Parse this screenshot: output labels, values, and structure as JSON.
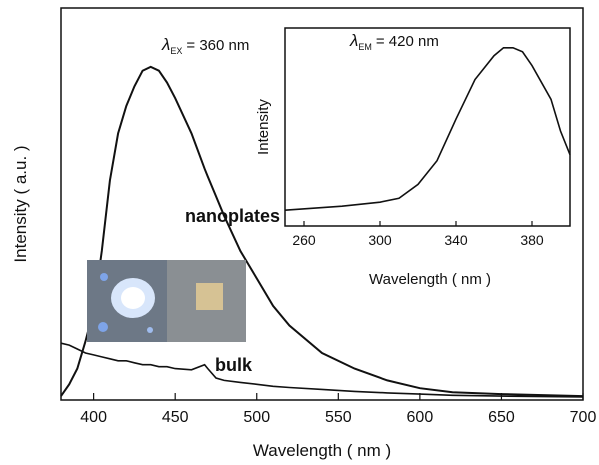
{
  "chart_data": [
    {
      "type": "line",
      "x_label": "Wavelength ( nm )",
      "y_label": "Intensity ( a.u. )",
      "annotation": {
        "symbol": "λ",
        "sub": "EX",
        "text": "= 360 nm"
      },
      "x": [
        380,
        385,
        390,
        395,
        400,
        405,
        410,
        415,
        420,
        425,
        430,
        435,
        440,
        445,
        450,
        460,
        468,
        470,
        475,
        480,
        490,
        500,
        510,
        520,
        540,
        560,
        580,
        600,
        620,
        650,
        700
      ],
      "series": [
        {
          "name": "nanoplates",
          "color": "#111111",
          "values": [
            0.01,
            0.04,
            0.08,
            0.15,
            0.23,
            0.38,
            0.56,
            0.68,
            0.75,
            0.8,
            0.84,
            0.85,
            0.84,
            0.81,
            0.77,
            0.68,
            0.59,
            0.57,
            0.52,
            0.47,
            0.38,
            0.31,
            0.24,
            0.19,
            0.12,
            0.08,
            0.05,
            0.03,
            0.02,
            0.015,
            0.01
          ]
        },
        {
          "name": "bulk",
          "color": "#111111",
          "values": [
            0.145,
            0.14,
            0.13,
            0.12,
            0.115,
            0.11,
            0.105,
            0.1,
            0.1,
            0.095,
            0.09,
            0.09,
            0.085,
            0.085,
            0.08,
            0.077,
            0.09,
            0.08,
            0.056,
            0.05,
            0.045,
            0.04,
            0.035,
            0.032,
            0.027,
            0.022,
            0.018,
            0.015,
            0.012,
            0.01,
            0.008
          ]
        }
      ],
      "xlim": [
        380,
        700
      ],
      "xticks": [
        400,
        450,
        500,
        550,
        600,
        650,
        700
      ],
      "ylim": [
        0,
        1
      ]
    },
    {
      "type": "line",
      "x_label": "Wavelength ( nm )",
      "y_label": "Intensity",
      "annotation": {
        "symbol": "λ",
        "sub": "EM",
        "text": "= 420 nm"
      },
      "x": [
        250,
        280,
        300,
        310,
        320,
        330,
        340,
        350,
        360,
        365,
        370,
        375,
        380,
        390,
        395,
        400
      ],
      "series": [
        {
          "color": "#111111",
          "values": [
            0.08,
            0.1,
            0.12,
            0.14,
            0.21,
            0.33,
            0.54,
            0.74,
            0.86,
            0.9,
            0.9,
            0.88,
            0.81,
            0.64,
            0.48,
            0.36
          ]
        }
      ],
      "xlim": [
        250,
        400
      ],
      "xticks": [
        260,
        300,
        340,
        380
      ],
      "ylim": [
        0,
        1
      ]
    }
  ]
}
